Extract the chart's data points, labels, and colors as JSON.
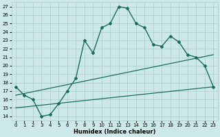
{
  "xlabel": "Humidex (Indice chaleur)",
  "bg_color": "#cce8e8",
  "grid_color": "#aacccc",
  "line_color": "#1a6b5a",
  "xlim": [
    -0.5,
    23.5
  ],
  "ylim": [
    13.5,
    27.5
  ],
  "yticks": [
    14,
    15,
    16,
    17,
    18,
    19,
    20,
    21,
    22,
    23,
    24,
    25,
    26,
    27
  ],
  "xticks": [
    0,
    1,
    2,
    3,
    4,
    5,
    6,
    7,
    8,
    9,
    10,
    11,
    12,
    13,
    14,
    15,
    16,
    17,
    18,
    19,
    20,
    21,
    22,
    23
  ],
  "main_x": [
    0,
    1,
    2,
    3,
    4,
    5,
    6,
    7,
    8,
    9,
    10,
    11,
    12,
    13,
    14,
    15,
    16,
    17,
    18,
    19,
    20,
    21,
    22,
    23
  ],
  "main_y": [
    17.5,
    16.5,
    16.0,
    14.0,
    14.2,
    15.5,
    17.0,
    18.5,
    23.0,
    21.5,
    24.5,
    25.0,
    27.0,
    26.8,
    25.0,
    24.5,
    22.5,
    22.3,
    23.5,
    22.8,
    21.3,
    21.0,
    20.0,
    17.5
  ],
  "trend1_x": [
    0,
    23
  ],
  "trend1_y": [
    16.5,
    21.3
  ],
  "trend2_x": [
    0,
    23
  ],
  "trend2_y": [
    15.0,
    17.5
  ],
  "axis_fontsize": 6,
  "tick_fontsize": 5
}
